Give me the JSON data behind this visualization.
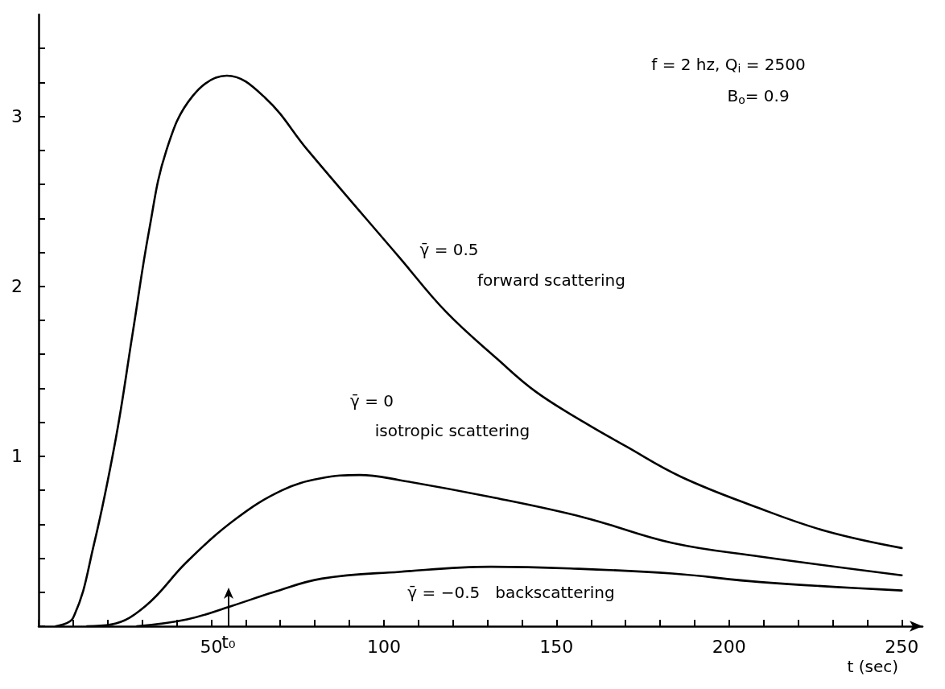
{
  "chart_data": {
    "type": "line",
    "xlabel": "t (sec)",
    "xlim": [
      0,
      256
    ],
    "ylim": [
      0,
      3.6
    ],
    "xticks": [
      {
        "value": 0,
        "label": null
      },
      {
        "value": 10,
        "label": null
      },
      {
        "value": 20,
        "label": null
      },
      {
        "value": 30,
        "label": null
      },
      {
        "value": 40,
        "label": null
      },
      50,
      {
        "value": 60,
        "label": null
      },
      {
        "value": 70,
        "label": null
      },
      {
        "value": 80,
        "label": null
      },
      {
        "value": 90,
        "label": null
      },
      100,
      {
        "value": 110,
        "label": null
      },
      {
        "value": 120,
        "label": null
      },
      {
        "value": 130,
        "label": null
      },
      {
        "value": 140,
        "label": null
      },
      150,
      {
        "value": 160,
        "label": null
      },
      {
        "value": 170,
        "label": null
      },
      {
        "value": 180,
        "label": null
      },
      {
        "value": 190,
        "label": null
      },
      200,
      {
        "value": 210,
        "label": null
      },
      {
        "value": 220,
        "label": null
      },
      {
        "value": 230,
        "label": null
      },
      {
        "value": 240,
        "label": null
      },
      250
    ],
    "yticks": [
      {
        "value": 0,
        "label": null
      },
      {
        "value": 0.2,
        "label": null
      },
      {
        "value": 0.4,
        "label": null
      },
      {
        "value": 0.6,
        "label": null
      },
      {
        "value": 0.8,
        "label": null
      },
      1,
      {
        "value": 1.2,
        "label": null
      },
      {
        "value": 1.4,
        "label": null
      },
      {
        "value": 1.6,
        "label": null
      },
      {
        "value": 1.8,
        "label": null
      },
      2,
      {
        "value": 2.2,
        "label": null
      },
      {
        "value": 2.4,
        "label": null
      },
      {
        "value": 2.6,
        "label": null
      },
      {
        "value": 2.8,
        "label": null
      },
      3,
      {
        "value": 3.2,
        "label": null
      },
      {
        "value": 3.4,
        "label": null
      }
    ],
    "grid": false,
    "marker": "none",
    "line_style": "solid",
    "ref_lines": [
      {
        "axis": "x",
        "value": 55,
        "label": "t₀"
      }
    ],
    "series": [
      {
        "color": "#000000",
        "x": [
          5,
          10,
          16,
          22.4,
          27.2,
          32,
          37,
          44.6,
          54.5,
          65.6,
          78,
          104.5,
          118,
          133,
          144,
          158,
          170,
          186,
          208,
          228,
          250
        ],
        "values": [
          0,
          0.05,
          0.48,
          1.11,
          1.72,
          2.33,
          2.8,
          3.12,
          3.24,
          3.11,
          2.8,
          2.17,
          1.85,
          1.57,
          1.38,
          1.2,
          1.06,
          0.88,
          0.7,
          0.56,
          0.46
        ]
      },
      {
        "color": "#000000",
        "x": [
          14,
          21,
          31,
          43,
          57,
          70.5,
          81.7,
          93,
          104.5,
          131,
          158,
          183.5,
          209,
          250
        ],
        "values": [
          0,
          0.01,
          0.12,
          0.38,
          0.63,
          0.8,
          0.87,
          0.89,
          0.86,
          0.76,
          0.64,
          0.49,
          0.41,
          0.3
        ]
      },
      {
        "color": "#000000",
        "x": [
          28.5,
          43,
          56,
          68,
          82,
          104.5,
          131,
          154,
          183.5,
          209,
          250
        ],
        "values": [
          0,
          0.04,
          0.12,
          0.2,
          0.28,
          0.32,
          0.35,
          0.34,
          0.31,
          0.26,
          0.21
        ]
      }
    ],
    "annotations": [
      "f = 2 hz, Q$_{i}$ = 2500",
      "B$_{o}$= 0.9",
      "γ̄ = 0.5",
      "forward scattering",
      "γ̄ = 0",
      "isotropic scattering",
      "γ̄ = −0.5   backscattering"
    ]
  }
}
